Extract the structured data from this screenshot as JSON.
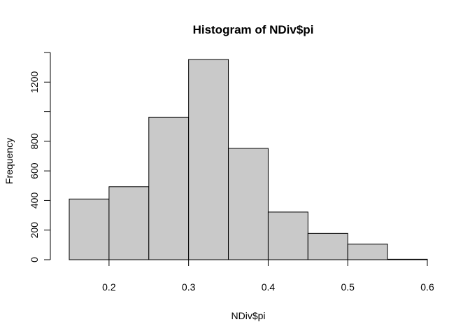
{
  "chart_data": {
    "type": "bar",
    "title": "Histogram of NDiv$pi",
    "xlabel": "NDiv$pi",
    "ylabel": "Frequency",
    "bins": [
      {
        "x0": 0.15,
        "x1": 0.2,
        "count": 410
      },
      {
        "x0": 0.2,
        "count_note": "",
        "x1": 0.25,
        "count": 493
      },
      {
        "x0": 0.25,
        "x1": 0.3,
        "count": 963
      },
      {
        "x0": 0.3,
        "x1": 0.35,
        "count": 1353
      },
      {
        "x0": 0.35,
        "x1": 0.4,
        "count": 752
      },
      {
        "x0": 0.4,
        "x1": 0.45,
        "count": 322
      },
      {
        "x0": 0.45,
        "x1": 0.5,
        "count": 178
      },
      {
        "x0": 0.5,
        "x1": 0.55,
        "count": 105
      },
      {
        "x0": 0.55,
        "x1": 0.6,
        "count": 3
      }
    ],
    "xlim": [
      0.15,
      0.6
    ],
    "ylim": [
      0,
      1400
    ],
    "x_ticks": [
      "0.2",
      "0.3",
      "0.4",
      "0.5",
      "0.6"
    ],
    "y_ticks": [
      "0",
      "200",
      "400",
      "600",
      "800",
      "1200"
    ],
    "bar_color": "#c9c9c9",
    "grid": false,
    "legend": "none"
  }
}
